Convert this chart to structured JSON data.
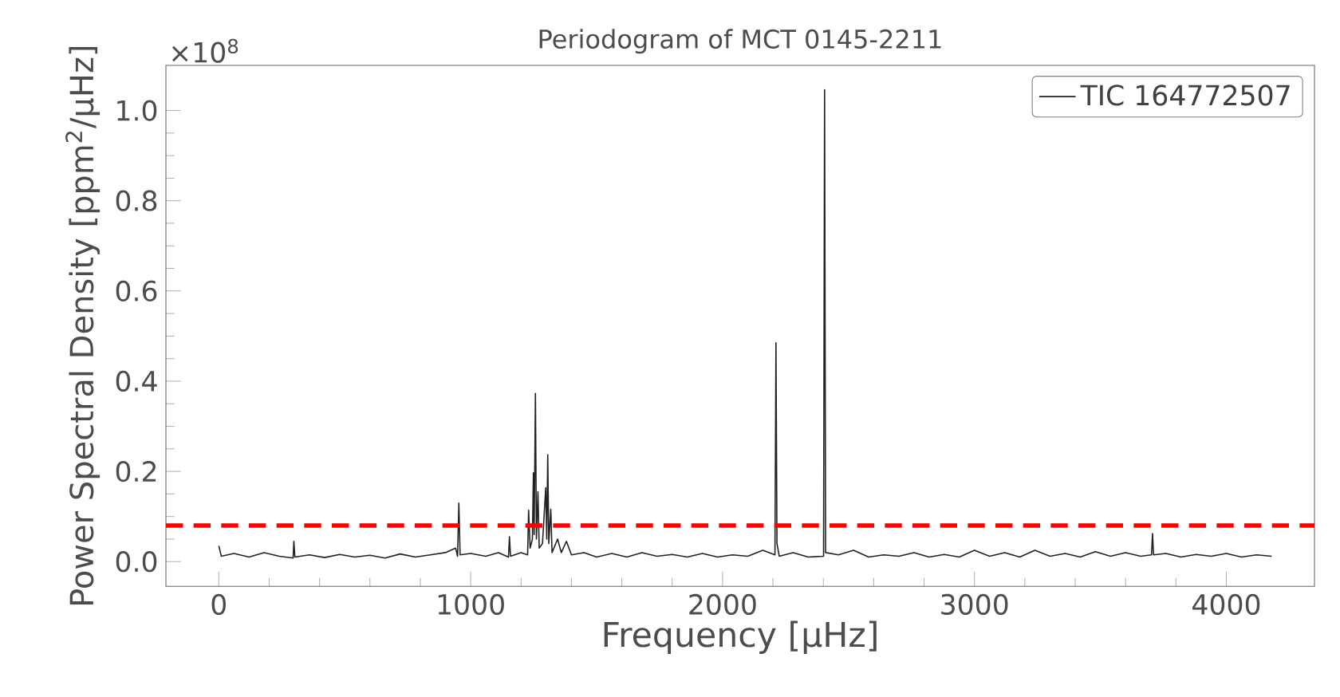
{
  "chart_data": {
    "type": "line",
    "title": "Periodogram of MCT 0145-2211",
    "xlabel": "Frequency [μHz]",
    "ylabel": "Power Spectral Density [ppm$^{2}$/μHz]",
    "annotations": [
      "×10$^{8}$"
    ],
    "xlim": [
      -210,
      4350
    ],
    "ylim": [
      -0.055,
      1.1
    ],
    "xticks": [
      0,
      1000,
      2000,
      3000,
      4000
    ],
    "yticks": [
      {
        "value": 0,
        "label": "0.0"
      },
      0.2,
      0.4,
      0.6,
      0.8,
      {
        "value": 1,
        "label": "1.0"
      }
    ],
    "legend": "top right",
    "grid": false,
    "marker": "none",
    "line_style": "solid",
    "ref_lines": [
      {
        "axis": "y",
        "value": 0.08,
        "color": "#ff0000",
        "line_style": "dashed"
      }
    ],
    "series": [
      {
        "name": "TIC 164772507",
        "color": "#222222",
        "x": [
          0,
          10,
          60,
          120,
          180,
          240,
          295,
          298,
          302,
          360,
          420,
          480,
          540,
          600,
          660,
          720,
          780,
          840,
          900,
          940,
          948,
          953,
          958,
          1000,
          1060,
          1110,
          1150,
          1154,
          1158,
          1200,
          1226,
          1230,
          1236,
          1245,
          1249,
          1252,
          1257,
          1261,
          1267,
          1272,
          1285,
          1298,
          1302,
          1306,
          1310,
          1318,
          1323,
          1345,
          1360,
          1380,
          1400,
          1450,
          1500,
          1560,
          1620,
          1680,
          1740,
          1800,
          1860,
          1920,
          1980,
          2040,
          2100,
          2160,
          2208,
          2212,
          2216,
          2225,
          2280,
          2340,
          2401,
          2405,
          2409,
          2460,
          2520,
          2580,
          2640,
          2700,
          2760,
          2820,
          2880,
          2940,
          3000,
          3060,
          3120,
          3180,
          3240,
          3300,
          3360,
          3420,
          3480,
          3540,
          3600,
          3660,
          3703,
          3707,
          3711,
          3760,
          3820,
          3880,
          3940,
          4000,
          4060,
          4120,
          4180
        ],
        "values": [
          0.035,
          0.012,
          0.018,
          0.01,
          0.02,
          0.012,
          0.008,
          0.045,
          0.01,
          0.015,
          0.009,
          0.016,
          0.01,
          0.014,
          0.008,
          0.017,
          0.01,
          0.015,
          0.02,
          0.03,
          0.012,
          0.13,
          0.015,
          0.018,
          0.012,
          0.02,
          0.01,
          0.055,
          0.012,
          0.02,
          0.015,
          0.114,
          0.03,
          0.05,
          0.197,
          0.06,
          0.373,
          0.05,
          0.155,
          0.03,
          0.04,
          0.164,
          0.05,
          0.237,
          0.04,
          0.116,
          0.02,
          0.05,
          0.02,
          0.045,
          0.015,
          0.02,
          0.01,
          0.018,
          0.01,
          0.02,
          0.012,
          0.016,
          0.01,
          0.018,
          0.01,
          0.015,
          0.012,
          0.025,
          0.015,
          0.485,
          0.04,
          0.012,
          0.02,
          0.01,
          0.012,
          1.046,
          0.02,
          0.015,
          0.025,
          0.01,
          0.015,
          0.012,
          0.02,
          0.01,
          0.016,
          0.01,
          0.025,
          0.012,
          0.02,
          0.01,
          0.025,
          0.012,
          0.018,
          0.01,
          0.022,
          0.012,
          0.02,
          0.012,
          0.015,
          0.062,
          0.015,
          0.018,
          0.01,
          0.016,
          0.012,
          0.018,
          0.01,
          0.015,
          0.012
        ]
      }
    ]
  }
}
